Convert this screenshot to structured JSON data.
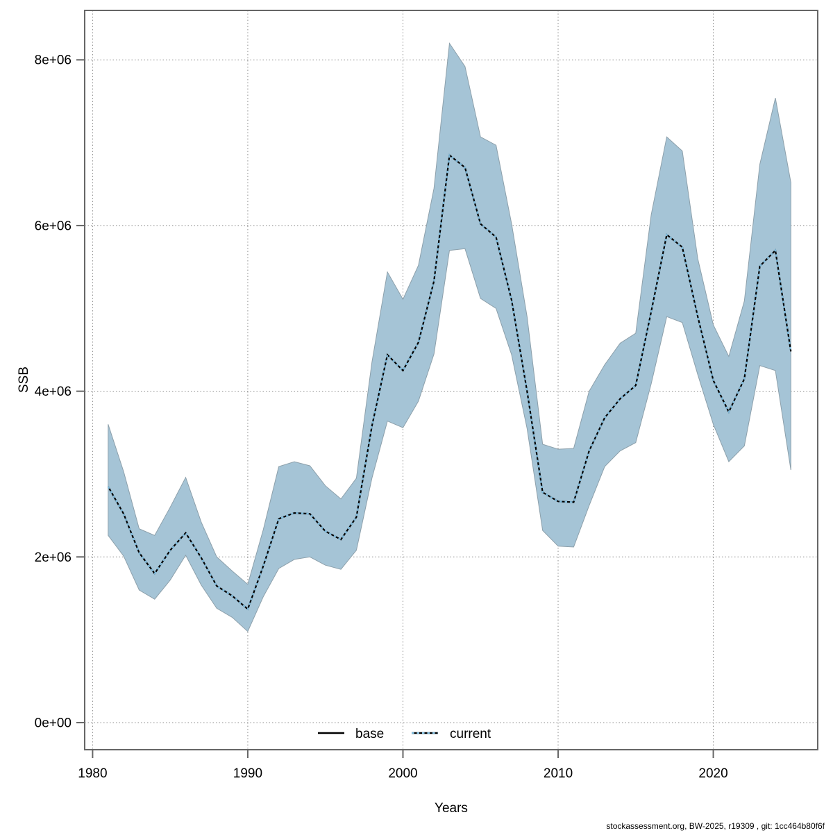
{
  "chart_data": {
    "type": "area",
    "title": "",
    "xlabel": "Years",
    "ylabel": "SSB",
    "grid": true,
    "legend_position": "bottom-center-inside",
    "xlim": [
      1979.49,
      2026.73
    ],
    "ylim": [
      -327000,
      8597000
    ],
    "x_ticks": [
      1980,
      1990,
      2000,
      2010,
      2020
    ],
    "y_ticks": [
      {
        "value": 0,
        "label": "0e+00"
      },
      {
        "value": 2000000,
        "label": "2e+06"
      },
      {
        "value": 4000000,
        "label": "4e+06"
      },
      {
        "value": 6000000,
        "label": "6e+06"
      },
      {
        "value": 8000000,
        "label": "8e+06"
      }
    ],
    "legend": [
      {
        "label": "base",
        "style": "solid",
        "color": "#000000"
      },
      {
        "label": "current",
        "style": "dotted",
        "color": "#7fbcde"
      }
    ],
    "years": [
      1981,
      1982,
      1983,
      1984,
      1985,
      1986,
      1987,
      1988,
      1989,
      1990,
      1991,
      1992,
      1993,
      1994,
      1995,
      1996,
      1997,
      1998,
      1999,
      2000,
      2001,
      2002,
      2003,
      2004,
      2005,
      2006,
      2007,
      2008,
      2009,
      2010,
      2011,
      2012,
      2013,
      2014,
      2015,
      2016,
      2017,
      2018,
      2019,
      2020,
      2021,
      2022,
      2023,
      2024,
      2025
    ],
    "series": [
      {
        "name": "current",
        "values": [
          2850000,
          2520000,
          2050000,
          1800000,
          2080000,
          2290000,
          1990000,
          1650000,
          1530000,
          1370000,
          1890000,
          2460000,
          2530000,
          2520000,
          2310000,
          2210000,
          2480000,
          3580000,
          4440000,
          4250000,
          4590000,
          5330000,
          6850000,
          6700000,
          6020000,
          5860000,
          5100000,
          4000000,
          2780000,
          2670000,
          2660000,
          3280000,
          3680000,
          3910000,
          4070000,
          4960000,
          5890000,
          5740000,
          4900000,
          4130000,
          3750000,
          4150000,
          5510000,
          5700000,
          4480000
        ]
      }
    ],
    "band": {
      "name": "confidence-interval",
      "lower": [
        2260000,
        2010000,
        1600000,
        1490000,
        1720000,
        2020000,
        1660000,
        1380000,
        1270000,
        1100000,
        1520000,
        1860000,
        1970000,
        2000000,
        1900000,
        1850000,
        2080000,
        2950000,
        3640000,
        3560000,
        3880000,
        4450000,
        5700000,
        5720000,
        5120000,
        5000000,
        4440000,
        3550000,
        2320000,
        2130000,
        2120000,
        2620000,
        3090000,
        3280000,
        3380000,
        4090000,
        4900000,
        4830000,
        4200000,
        3600000,
        3150000,
        3340000,
        4310000,
        4250000,
        3050000
      ],
      "upper": [
        3600000,
        3030000,
        2340000,
        2260000,
        2600000,
        2960000,
        2420000,
        2000000,
        1830000,
        1670000,
        2330000,
        3090000,
        3150000,
        3100000,
        2860000,
        2700000,
        2950000,
        4350000,
        5440000,
        5110000,
        5520000,
        6450000,
        8200000,
        7920000,
        7070000,
        6970000,
        6020000,
        4900000,
        3360000,
        3300000,
        3310000,
        4000000,
        4320000,
        4580000,
        4700000,
        6130000,
        7070000,
        6900000,
        5600000,
        4800000,
        4420000,
        5090000,
        6740000,
        7540000,
        6520000
      ]
    },
    "colors": {
      "band_fill": "#a5c4d6",
      "band_edge": "#8da0ab",
      "base_line": "#000000",
      "current_line": "#7fbcde",
      "grid": "#8c8c8c",
      "frame": "#666666"
    }
  },
  "footer": {
    "text": "stockassessment.org, BW-2025, r19309 , git: 1cc464b80f6f"
  }
}
